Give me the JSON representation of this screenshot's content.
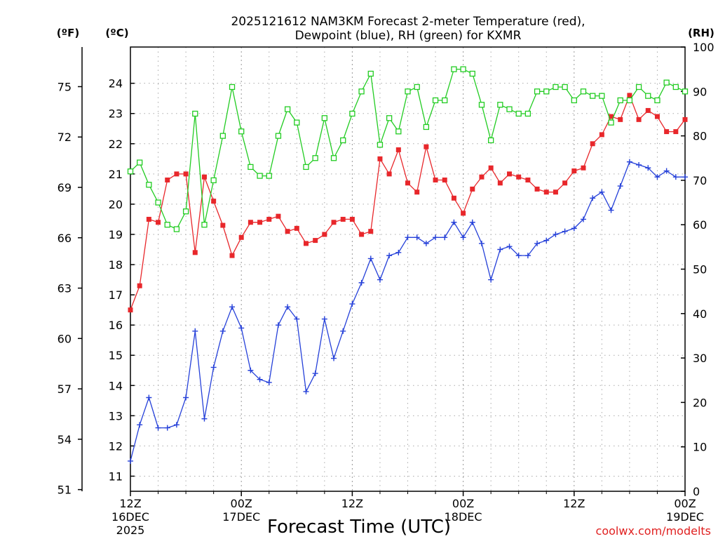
{
  "chart_data": {
    "type": "line",
    "title_line1": "2025121612 NAM3KM Forecast 2-meter Temperature (red),",
    "title_line2": "Dewpoint (blue), RH (green) for KXMR",
    "xlabel": "Forecast Time (UTC)",
    "credit": "coolwx.com/modelts",
    "left_f_label": "(ºF)",
    "left_c_label": "(ºC)",
    "right_label": "(RH)",
    "f_ticks": [
      "51",
      "54",
      "57",
      "60",
      "63",
      "66",
      "69",
      "72",
      "75"
    ],
    "c_ticks": [
      "11",
      "12",
      "13",
      "14",
      "15",
      "16",
      "17",
      "18",
      "19",
      "20",
      "21",
      "22",
      "23",
      "24"
    ],
    "rh_ticks": [
      "0",
      "10",
      "20",
      "30",
      "40",
      "50",
      "60",
      "70",
      "80",
      "90",
      "100"
    ],
    "x_ticks": [
      {
        "hour": 0,
        "line1": "12Z",
        "line2": "16DEC",
        "line3": "2025"
      },
      {
        "hour": 12,
        "line1": "00Z",
        "line2": "17DEC",
        "line3": ""
      },
      {
        "hour": 24,
        "line1": "12Z",
        "line2": "",
        "line3": ""
      },
      {
        "hour": 36,
        "line1": "00Z",
        "line2": "18DEC",
        "line3": ""
      },
      {
        "hour": 48,
        "line1": "12Z",
        "line2": "",
        "line3": ""
      },
      {
        "hour": 60,
        "line1": "00Z",
        "line2": "19DEC",
        "line3": ""
      }
    ],
    "x_range": [
      0,
      60
    ],
    "celsius_range": [
      10.5,
      25.2
    ],
    "rh_range": [
      0,
      100
    ],
    "grid": true,
    "series": [
      {
        "name": "Temperature",
        "unit": "C",
        "color": "#e8272b",
        "marker": "filled-square",
        "hours": [
          0,
          1,
          2,
          3,
          4,
          5,
          6,
          7,
          8,
          9,
          10,
          11,
          12,
          13,
          14,
          15,
          16,
          17,
          18,
          19,
          20,
          21,
          22,
          23,
          24,
          25,
          26,
          27,
          28,
          29,
          30,
          31,
          32,
          33,
          34,
          35,
          36,
          37,
          38,
          39,
          40,
          41,
          42,
          43,
          44,
          45,
          46,
          47,
          48,
          49,
          50,
          51,
          52,
          53,
          54,
          55,
          56,
          57,
          58,
          59,
          60
        ],
        "values": [
          16.5,
          17.3,
          19.5,
          19.4,
          20.8,
          21.0,
          21.0,
          18.4,
          20.9,
          20.1,
          19.3,
          18.3,
          18.9,
          19.4,
          19.4,
          19.5,
          19.6,
          19.1,
          19.2,
          18.7,
          18.8,
          19.0,
          19.4,
          19.5,
          19.5,
          19.0,
          19.1,
          21.5,
          21.0,
          21.8,
          20.7,
          20.4,
          21.9,
          20.8,
          20.8,
          20.2,
          19.7,
          20.5,
          20.9,
          21.2,
          20.7,
          21.0,
          20.9,
          20.8,
          20.5,
          20.4,
          20.4,
          20.7,
          21.1,
          21.2,
          22.0,
          22.3,
          22.9,
          22.8,
          23.6,
          22.8,
          23.1,
          22.9,
          22.4,
          22.4,
          22.8
        ]
      },
      {
        "name": "Dewpoint",
        "unit": "C",
        "color": "#2540d9",
        "marker": "plus",
        "hours": [
          0,
          1,
          2,
          3,
          4,
          5,
          6,
          7,
          8,
          9,
          10,
          11,
          12,
          13,
          14,
          15,
          16,
          17,
          18,
          19,
          20,
          21,
          22,
          23,
          24,
          25,
          26,
          27,
          28,
          29,
          30,
          31,
          32,
          33,
          34,
          35,
          36,
          37,
          38,
          39,
          40,
          41,
          42,
          43,
          44,
          45,
          46,
          47,
          48,
          49,
          50,
          51,
          52,
          53,
          54,
          55,
          56,
          57,
          58,
          59,
          60
        ],
        "values": [
          11.5,
          12.7,
          13.6,
          12.6,
          12.6,
          12.7,
          13.6,
          15.8,
          12.9,
          14.6,
          15.8,
          16.6,
          15.9,
          14.5,
          14.2,
          14.1,
          16.0,
          16.6,
          16.2,
          13.8,
          14.4,
          16.2,
          14.9,
          15.8,
          16.7,
          17.4,
          18.2,
          17.5,
          18.3,
          18.4,
          18.9,
          18.9,
          18.7,
          18.9,
          18.9,
          19.4,
          18.9,
          19.4,
          18.7,
          17.5,
          18.5,
          18.6,
          18.3,
          18.3,
          18.7,
          18.8,
          19.0,
          19.1,
          19.2,
          19.5,
          20.2,
          20.4,
          19.8,
          20.6,
          21.4,
          21.3,
          21.2,
          20.9,
          21.1,
          20.9,
          20.9
        ]
      },
      {
        "name": "RH",
        "unit": "%",
        "color": "#22cc22",
        "marker": "open-square",
        "hours": [
          0,
          1,
          2,
          3,
          4,
          5,
          6,
          7,
          8,
          9,
          10,
          11,
          12,
          13,
          14,
          15,
          16,
          17,
          18,
          19,
          20,
          21,
          22,
          23,
          24,
          25,
          26,
          27,
          28,
          29,
          30,
          31,
          32,
          33,
          34,
          35,
          36,
          37,
          38,
          39,
          40,
          41,
          42,
          43,
          44,
          45,
          46,
          47,
          48,
          49,
          50,
          51,
          52,
          53,
          54,
          55,
          56,
          57,
          58,
          59,
          60
        ],
        "values": [
          72,
          74,
          69,
          65,
          60,
          59,
          63,
          85,
          60,
          70,
          80,
          91,
          81,
          73,
          71,
          71,
          80,
          86,
          83,
          73,
          75,
          84,
          75,
          79,
          85,
          90,
          94,
          78,
          84,
          81,
          90,
          91,
          82,
          88,
          88,
          95,
          95,
          94,
          87,
          79,
          87,
          86,
          85,
          85,
          90,
          90,
          91,
          91,
          88,
          90,
          89,
          89,
          83,
          88,
          88,
          91,
          89,
          88,
          92,
          91,
          90
        ]
      }
    ]
  }
}
